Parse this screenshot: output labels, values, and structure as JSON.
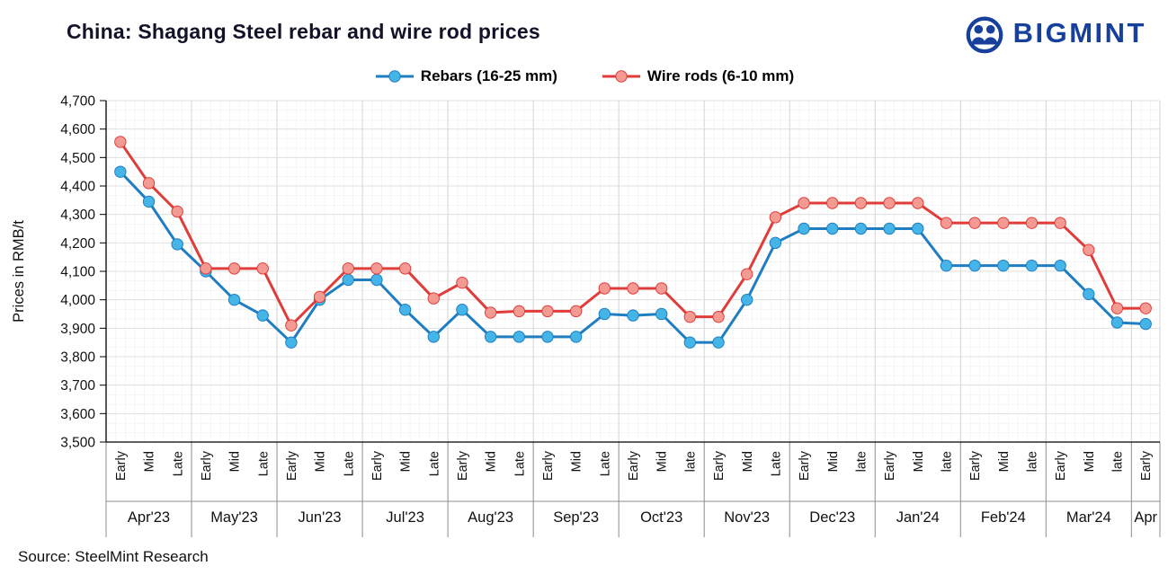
{
  "header": {
    "title": "China: Shagang Steel rebar and wire rod prices",
    "brand": "BIGMINT"
  },
  "colors": {
    "brand_blue": "#17409D",
    "title": "#121228",
    "rebar_line": "#1F7EC2",
    "rebar_marker": "#45B5E8",
    "wire_line": "#E03C3A",
    "wire_marker": "#F39B93"
  },
  "source": "Source: SteelMint Research",
  "chart_data": {
    "type": "line",
    "title": "China: Shagang Steel rebar and wire rod prices",
    "xlabel": "",
    "ylabel": "Prices in RMB/t",
    "ylim": [
      3500,
      4700
    ],
    "ytick_step": 100,
    "grid": "minor",
    "legend_position": "top",
    "x_ticks": [
      "Early",
      "Mid",
      "Late",
      "Early",
      "Mid",
      "Late",
      "Early",
      "Mid",
      "Late",
      "Early",
      "Mid",
      "Late",
      "Early",
      "Mid",
      "Late",
      "Early",
      "Mid",
      "Late",
      "Early",
      "Mid",
      "late",
      "Early",
      "Mid",
      "Late",
      "Early",
      "Mid",
      "late",
      "Early",
      "Mid",
      "late",
      "Early",
      "Mid",
      "late",
      "Early",
      "Mid",
      "late",
      "Early"
    ],
    "months": [
      {
        "label": "Apr'23",
        "span": 3
      },
      {
        "label": "May'23",
        "span": 3
      },
      {
        "label": "Jun'23",
        "span": 3
      },
      {
        "label": "Jul'23",
        "span": 3
      },
      {
        "label": "Aug'23",
        "span": 3
      },
      {
        "label": "Sep'23",
        "span": 3
      },
      {
        "label": "Oct'23",
        "span": 3
      },
      {
        "label": "Nov'23",
        "span": 3
      },
      {
        "label": "Dec'23",
        "span": 3
      },
      {
        "label": "Jan'24",
        "span": 3
      },
      {
        "label": "Feb'24",
        "span": 3
      },
      {
        "label": "Mar'24",
        "span": 3
      },
      {
        "label": "Apr",
        "span": 1
      }
    ],
    "series": [
      {
        "name": "Rebars (16-25 mm)",
        "line_color": "#1F7EC2",
        "marker_color": "#45B5E8",
        "values": [
          4450,
          4345,
          4195,
          4100,
          4000,
          3945,
          3850,
          4000,
          4070,
          4070,
          3965,
          3870,
          3965,
          3870,
          3870,
          3870,
          3870,
          3950,
          3945,
          3950,
          3850,
          3850,
          4000,
          4200,
          4250,
          4250,
          4250,
          4250,
          4250,
          4120,
          4120,
          4120,
          4120,
          4120,
          4020,
          3920,
          3915
        ]
      },
      {
        "name": "Wire rods (6-10 mm)",
        "line_color": "#E03C3A",
        "marker_color": "#F39B93",
        "values": [
          4555,
          4410,
          4310,
          4110,
          4110,
          4110,
          3910,
          4010,
          4110,
          4110,
          4110,
          4005,
          4060,
          3955,
          3960,
          3960,
          3960,
          4040,
          4040,
          4040,
          3940,
          3940,
          4090,
          4290,
          4340,
          4340,
          4340,
          4340,
          4340,
          4270,
          4270,
          4270,
          4270,
          4270,
          4175,
          3970,
          3970
        ]
      }
    ]
  }
}
